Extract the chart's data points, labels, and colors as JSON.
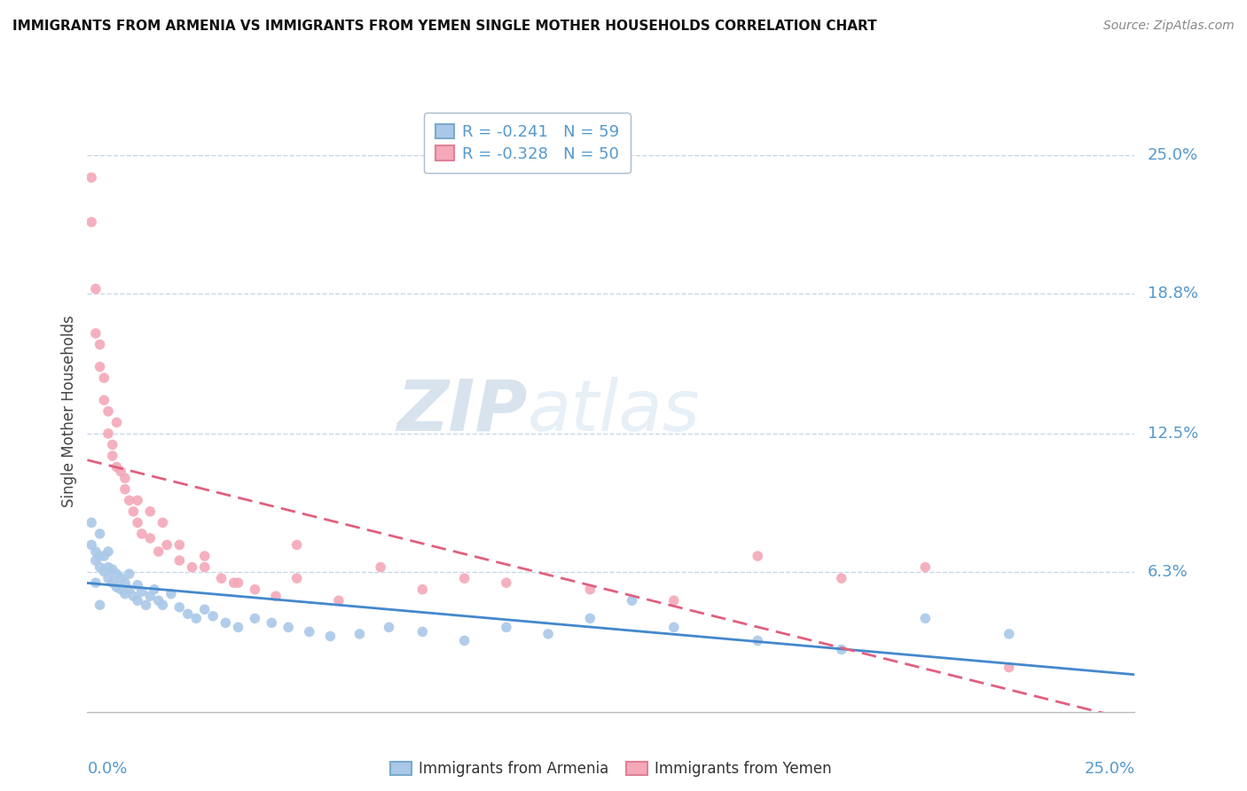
{
  "title": "IMMIGRANTS FROM ARMENIA VS IMMIGRANTS FROM YEMEN SINGLE MOTHER HOUSEHOLDS CORRELATION CHART",
  "source": "Source: ZipAtlas.com",
  "ylabel": "Single Mother Households",
  "xlim": [
    0.0,
    0.25
  ],
  "ylim": [
    0.0,
    0.27
  ],
  "yticks": [
    0.063,
    0.125,
    0.188,
    0.25
  ],
  "ytick_labels": [
    "6.3%",
    "12.5%",
    "18.8%",
    "25.0%"
  ],
  "armenia_color": "#aac8e8",
  "yemen_color": "#f4a8b8",
  "armenia_line_color": "#4488cc",
  "yemen_line_color": "#e06080",
  "R_armenia": -0.241,
  "N_armenia": 59,
  "R_yemen": -0.328,
  "N_yemen": 50,
  "legend_label_armenia": "Immigrants from Armenia",
  "legend_label_yemen": "Immigrants from Yemen",
  "background_color": "#ffffff",
  "watermark_zip": "ZIP",
  "watermark_atlas": "atlas",
  "armenia_x": [
    0.001,
    0.002,
    0.002,
    0.003,
    0.003,
    0.003,
    0.004,
    0.004,
    0.005,
    0.005,
    0.005,
    0.006,
    0.006,
    0.007,
    0.007,
    0.008,
    0.008,
    0.009,
    0.009,
    0.01,
    0.01,
    0.011,
    0.012,
    0.012,
    0.013,
    0.014,
    0.015,
    0.016,
    0.017,
    0.018,
    0.02,
    0.022,
    0.024,
    0.026,
    0.028,
    0.03,
    0.033,
    0.036,
    0.04,
    0.044,
    0.048,
    0.053,
    0.058,
    0.065,
    0.072,
    0.08,
    0.09,
    0.1,
    0.11,
    0.12,
    0.13,
    0.14,
    0.16,
    0.18,
    0.2,
    0.22,
    0.001,
    0.002,
    0.003
  ],
  "armenia_y": [
    0.075,
    0.068,
    0.072,
    0.065,
    0.07,
    0.08,
    0.063,
    0.07,
    0.06,
    0.065,
    0.072,
    0.058,
    0.064,
    0.056,
    0.062,
    0.055,
    0.06,
    0.053,
    0.058,
    0.055,
    0.062,
    0.052,
    0.05,
    0.057,
    0.054,
    0.048,
    0.052,
    0.055,
    0.05,
    0.048,
    0.053,
    0.047,
    0.044,
    0.042,
    0.046,
    0.043,
    0.04,
    0.038,
    0.042,
    0.04,
    0.038,
    0.036,
    0.034,
    0.035,
    0.038,
    0.036,
    0.032,
    0.038,
    0.035,
    0.042,
    0.05,
    0.038,
    0.032,
    0.028,
    0.042,
    0.035,
    0.085,
    0.058,
    0.048
  ],
  "yemen_x": [
    0.001,
    0.001,
    0.002,
    0.002,
    0.003,
    0.003,
    0.004,
    0.004,
    0.005,
    0.005,
    0.006,
    0.006,
    0.007,
    0.008,
    0.009,
    0.01,
    0.011,
    0.012,
    0.013,
    0.015,
    0.017,
    0.019,
    0.022,
    0.025,
    0.028,
    0.032,
    0.036,
    0.04,
    0.045,
    0.05,
    0.06,
    0.07,
    0.08,
    0.09,
    0.1,
    0.12,
    0.14,
    0.16,
    0.18,
    0.2,
    0.22,
    0.007,
    0.009,
    0.012,
    0.015,
    0.018,
    0.022,
    0.028,
    0.035,
    0.05
  ],
  "yemen_y": [
    0.24,
    0.22,
    0.19,
    0.17,
    0.165,
    0.155,
    0.15,
    0.14,
    0.135,
    0.125,
    0.12,
    0.115,
    0.11,
    0.108,
    0.1,
    0.095,
    0.09,
    0.085,
    0.08,
    0.078,
    0.072,
    0.075,
    0.068,
    0.065,
    0.07,
    0.06,
    0.058,
    0.055,
    0.052,
    0.06,
    0.05,
    0.065,
    0.055,
    0.06,
    0.058,
    0.055,
    0.05,
    0.07,
    0.06,
    0.065,
    0.02,
    0.13,
    0.105,
    0.095,
    0.09,
    0.085,
    0.075,
    0.065,
    0.058,
    0.075
  ]
}
